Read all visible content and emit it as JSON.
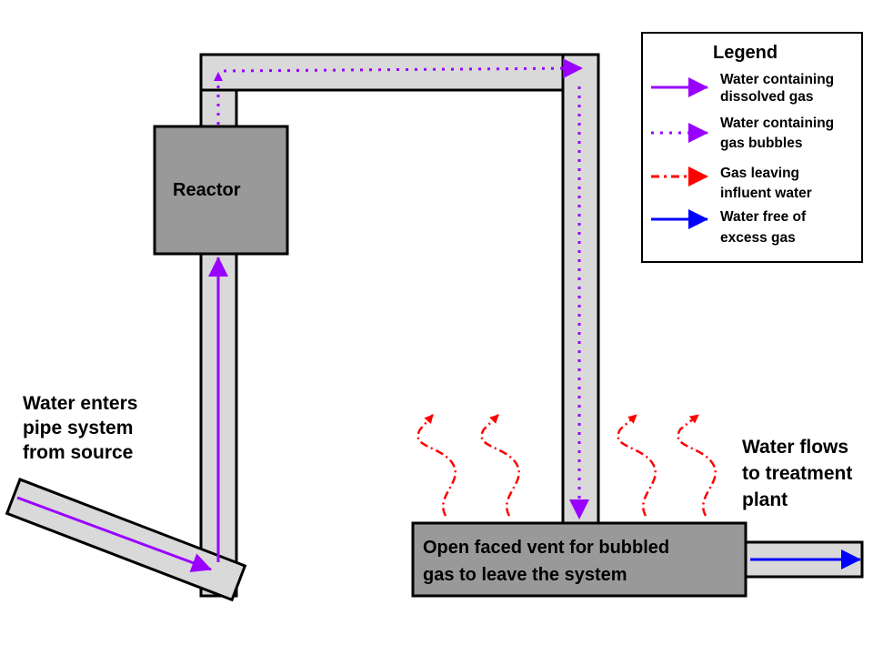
{
  "colors": {
    "dissolved": "#9900ff",
    "bubbles": "#9900ff",
    "gas": "#ff0000",
    "free": "#0000ff",
    "pipe": "#d9d9d9",
    "box": "#999999"
  },
  "labels": {
    "reactor": "Reactor",
    "source": [
      "Water enters",
      "pipe system",
      "from source"
    ],
    "outflow": [
      "Water flows",
      "to treatment",
      "plant"
    ],
    "vent": [
      "Open faced vent for bubbled",
      "gas to leave the system"
    ]
  },
  "legend": {
    "title": "Legend",
    "items": [
      {
        "style": "solid",
        "color": "#9900ff",
        "lines": [
          "Water containing",
          "dissolved gas"
        ]
      },
      {
        "style": "dotted",
        "color": "#9900ff",
        "lines": [
          "Water containing",
          "gas bubbles"
        ]
      },
      {
        "style": "dashdot",
        "color": "#ff0000",
        "lines": [
          "Gas leaving",
          "influent water"
        ]
      },
      {
        "style": "solid",
        "color": "#0000ff",
        "lines": [
          "Water free of",
          "excess gas"
        ]
      }
    ]
  }
}
